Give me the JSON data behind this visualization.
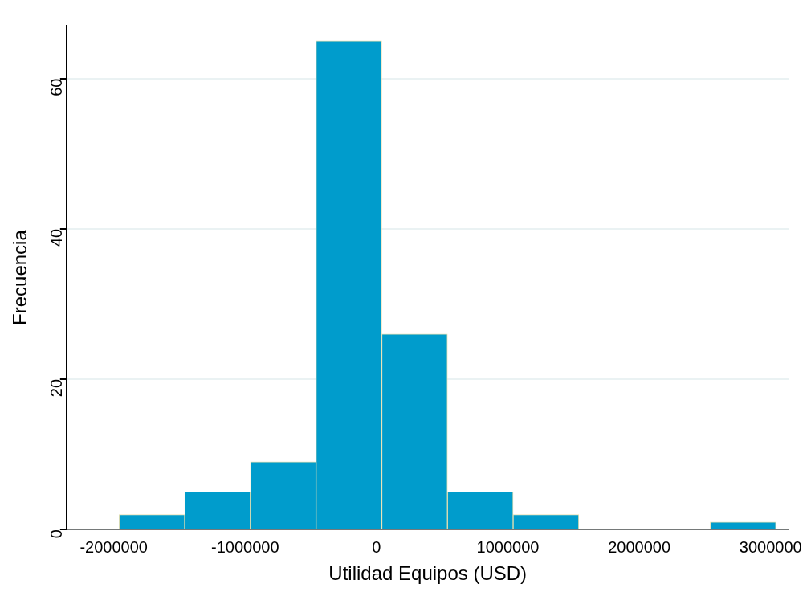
{
  "chart_data": {
    "type": "histogram",
    "xlabel": "Utilidad Equipos (USD)",
    "ylabel": "Frecuencia",
    "bins": [
      -1960000,
      -1460000,
      -960000,
      -460000,
      40000,
      540000,
      1040000,
      1540000,
      2040000,
      2540000,
      3040000
    ],
    "values": [
      2,
      5,
      9,
      65,
      26,
      5,
      2,
      0,
      0,
      1
    ],
    "color": "#009ccc",
    "xlim": [
      -2360000,
      3140000
    ],
    "xticks": [
      -2000000,
      -1000000,
      0,
      1000000,
      2000000,
      3000000
    ],
    "ylim": [
      0,
      67
    ],
    "yticks": [
      0,
      20,
      40,
      60
    ],
    "grid": "y",
    "legend": false
  }
}
